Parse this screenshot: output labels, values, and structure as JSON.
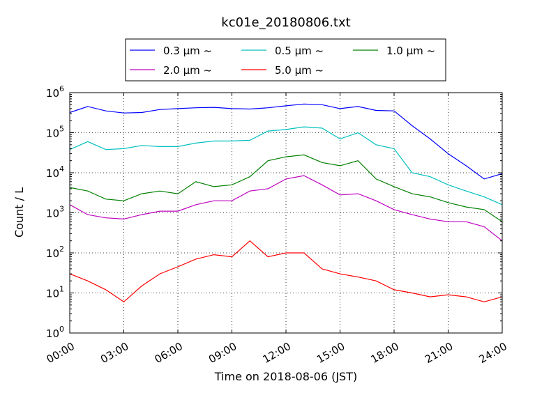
{
  "chart_data": {
    "type": "line",
    "title": "kc01e_20180806.txt",
    "xlabel": "Time on 2018-08-06 (JST)",
    "ylabel": "Count / L",
    "yscale": "log",
    "ylim": [
      1,
      1000000
    ],
    "xlim": [
      "2018-08-06 00:00",
      "2018-08-07 00:00"
    ],
    "x_ticks": [
      "00:00",
      "03:00",
      "06:00",
      "09:00",
      "12:00",
      "15:00",
      "18:00",
      "21:00",
      "24:00"
    ],
    "y_ticks": [
      {
        "base": "10",
        "exp": "0"
      },
      {
        "base": "10",
        "exp": "1"
      },
      {
        "base": "10",
        "exp": "2"
      },
      {
        "base": "10",
        "exp": "3"
      },
      {
        "base": "10",
        "exp": "4"
      },
      {
        "base": "10",
        "exp": "5"
      },
      {
        "base": "10",
        "exp": "6"
      }
    ],
    "grid": true,
    "legend_position": "top",
    "time_points": [
      "00:00",
      "01:00",
      "02:00",
      "03:00",
      "04:00",
      "05:00",
      "06:00",
      "07:00",
      "08:00",
      "09:00",
      "10:00",
      "11:00",
      "12:00",
      "13:00",
      "14:00",
      "15:00",
      "16:00",
      "17:00",
      "18:00",
      "19:00",
      "20:00",
      "21:00",
      "22:00",
      "23:00",
      "24:00"
    ],
    "series": [
      {
        "name": "0.3 μm ~",
        "color": "#0000ff",
        "values": [
          320000,
          450000,
          350000,
          310000,
          320000,
          380000,
          400000,
          420000,
          430000,
          400000,
          390000,
          420000,
          470000,
          520000,
          500000,
          400000,
          450000,
          360000,
          350000,
          150000,
          70000,
          30000,
          15000,
          7000,
          9500
        ]
      },
      {
        "name": "0.5 μm ~",
        "color": "#00bfbf",
        "values": [
          38000,
          60000,
          38000,
          40000,
          48000,
          45000,
          45000,
          55000,
          62000,
          62000,
          65000,
          110000,
          120000,
          140000,
          130000,
          70000,
          100000,
          50000,
          40000,
          10000,
          8000,
          5000,
          3500,
          2500,
          1600
        ]
      },
      {
        "name": "1.0 μm ~",
        "color": "#008000",
        "values": [
          4300,
          3500,
          2200,
          2000,
          3000,
          3500,
          3000,
          6000,
          4500,
          5000,
          8000,
          20000,
          25000,
          28000,
          18000,
          15000,
          20000,
          7000,
          4500,
          3000,
          2500,
          1800,
          1400,
          1200,
          600
        ]
      },
      {
        "name": "2.0 μm ~",
        "color": "#bf00bf",
        "values": [
          1600,
          900,
          750,
          700,
          900,
          1100,
          1100,
          1600,
          2000,
          2000,
          3500,
          4000,
          7000,
          8500,
          5000,
          2800,
          3000,
          2000,
          1200,
          900,
          700,
          600,
          600,
          450,
          200
        ]
      },
      {
        "name": "5.0 μm ~",
        "color": "#ff0000",
        "values": [
          30,
          20,
          12,
          6,
          15,
          30,
          45,
          70,
          90,
          80,
          200,
          80,
          100,
          100,
          40,
          30,
          25,
          20,
          12,
          10,
          8,
          9,
          8,
          6,
          8
        ]
      }
    ]
  }
}
